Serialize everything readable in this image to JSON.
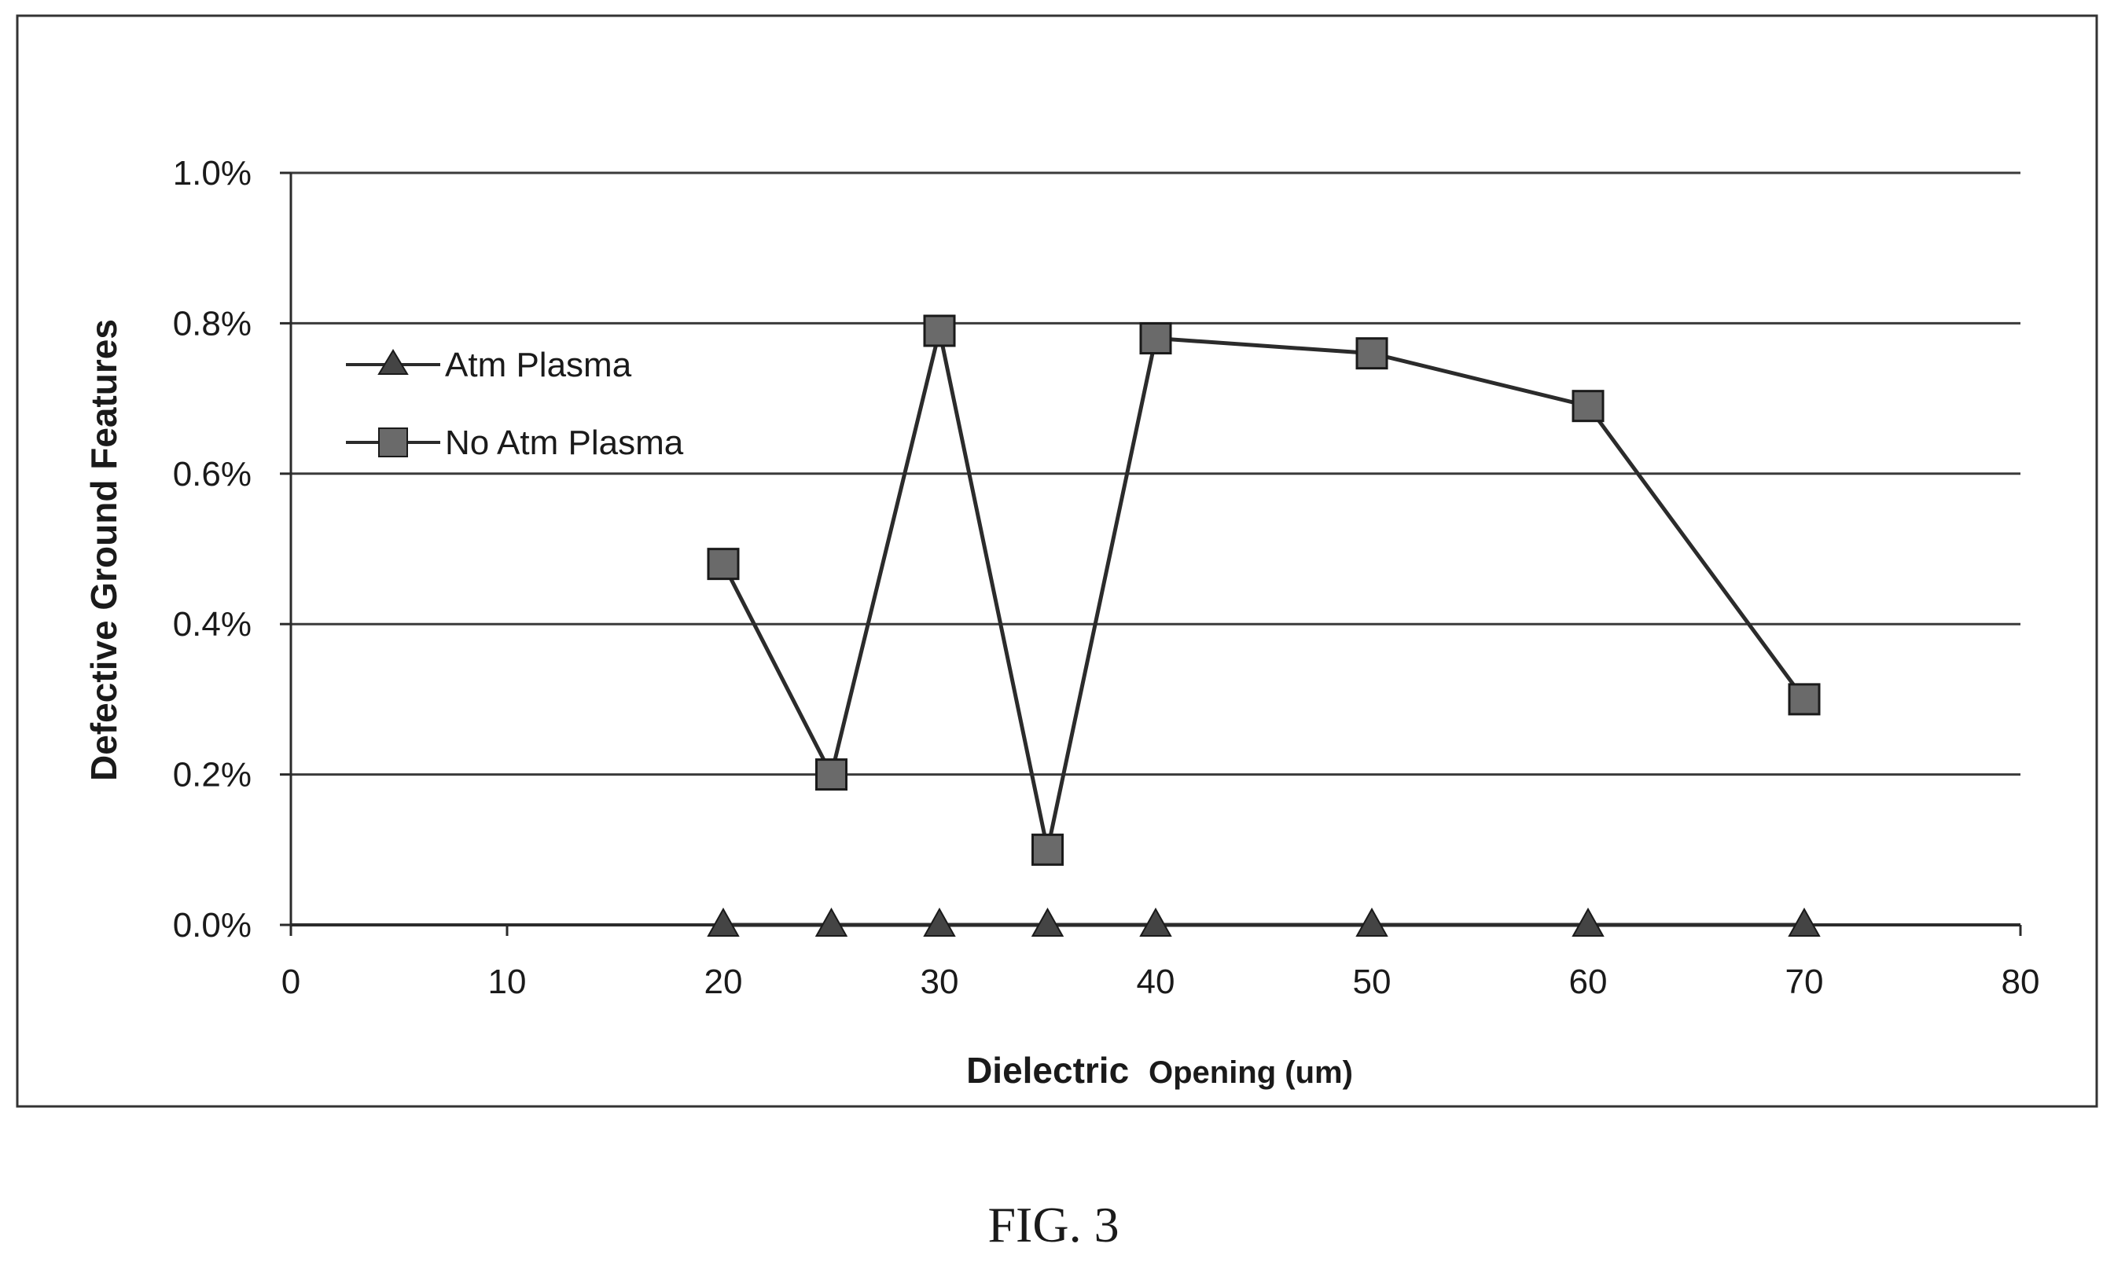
{
  "figure": {
    "caption": "FIG. 3"
  },
  "chart_data": {
    "type": "line",
    "title": "",
    "xlabel_bold": "Dielectric",
    "xlabel_rest": "Opening (um)",
    "xlabel": "Dielectric Opening (um)",
    "ylabel": "Defective Ground Features",
    "xlim": [
      0,
      80
    ],
    "ylim": [
      0.0,
      1.0
    ],
    "x_ticks": [
      0,
      10,
      20,
      30,
      40,
      50,
      60,
      70,
      80
    ],
    "x_tick_labels": [
      "0",
      "10",
      "20",
      "30",
      "40",
      "50",
      "60",
      "70",
      "80"
    ],
    "y_ticks": [
      0.0,
      0.2,
      0.4,
      0.6,
      0.8,
      1.0
    ],
    "y_tick_labels": [
      "0.0%",
      "0.2%",
      "0.4%",
      "0.6%",
      "0.8%",
      "1.0%"
    ],
    "y_unit": "%",
    "grid": "horizontal",
    "legend_position": "upper-left",
    "series": [
      {
        "name": "Atm Plasma",
        "marker": "triangle",
        "color": "#2b2b2b",
        "x": [
          20,
          25,
          30,
          35,
          40,
          50,
          60,
          70
        ],
        "y": [
          0.0,
          0.0,
          0.0,
          0.0,
          0.0,
          0.0,
          0.0,
          0.0
        ]
      },
      {
        "name": "No Atm Plasma",
        "marker": "square",
        "color": "#2b2b2b",
        "x": [
          20,
          25,
          30,
          35,
          40,
          50,
          60,
          70
        ],
        "y": [
          0.48,
          0.2,
          0.79,
          0.1,
          0.78,
          0.76,
          0.69,
          0.3
        ]
      }
    ]
  }
}
